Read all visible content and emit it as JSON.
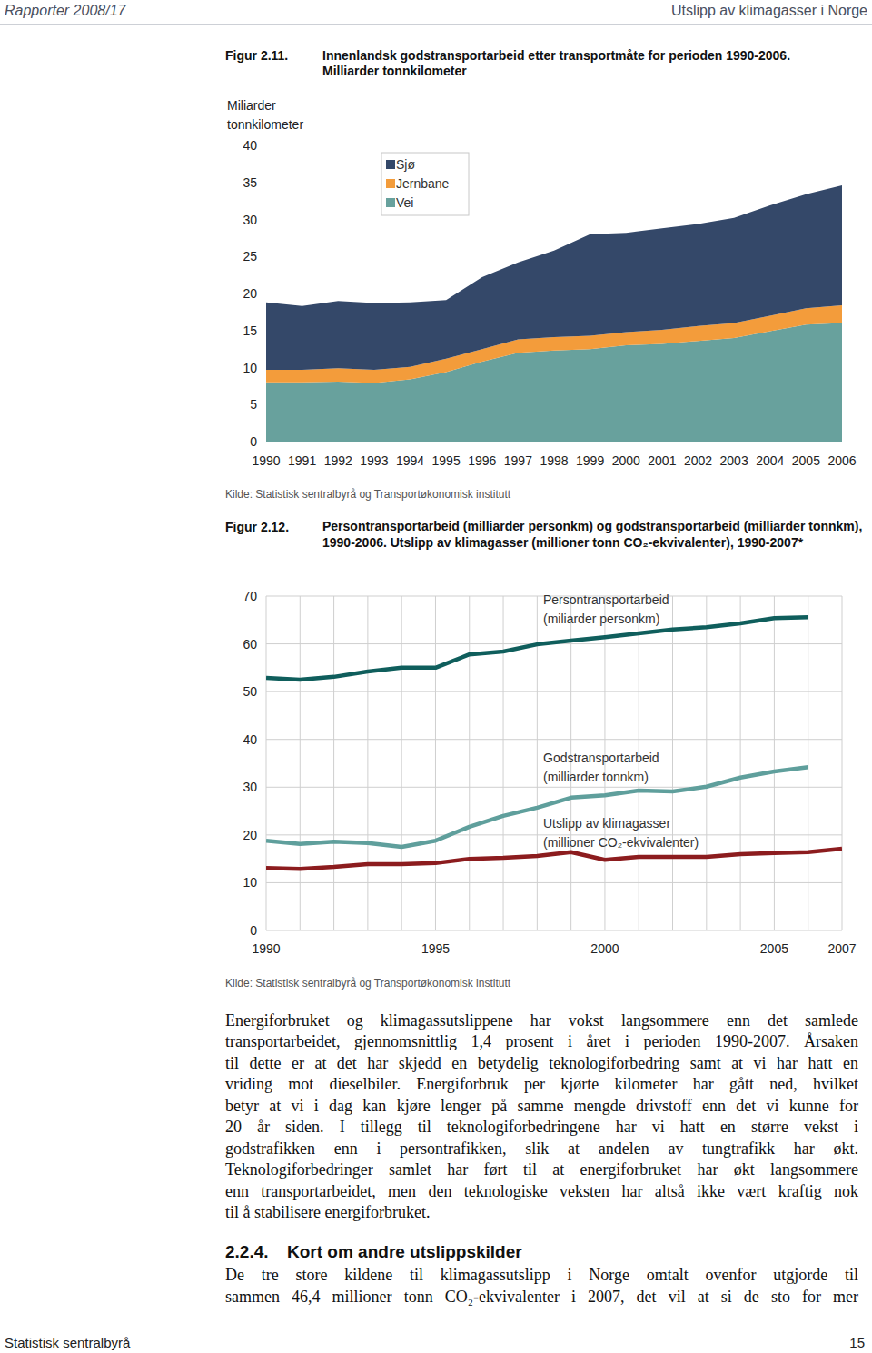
{
  "page": {
    "header_left": "Rapporter 2008/17",
    "header_right": "Utslipp av klimagasser i Norge",
    "footer_left": "Statistisk sentralbyrå",
    "footer_right": "15"
  },
  "chart_data": [
    {
      "type": "area",
      "stacked": true,
      "figure_label": "Figur 2.11.",
      "title": "Innenlandsk godstransportarbeid etter transportmåte for perioden 1990-2006.",
      "subtitle": "Milliarder tonnkilometer",
      "y_label": "Miliarder tonnkilometer",
      "source": "Kilde: Statistisk sentralbyrå og Transportøkonomisk institutt",
      "x": [
        1990,
        1991,
        1992,
        1993,
        1994,
        1995,
        1996,
        1997,
        1998,
        1999,
        2000,
        2001,
        2002,
        2003,
        2004,
        2005,
        2006
      ],
      "xlim": [
        1990,
        2006
      ],
      "xticks": [
        1990,
        1991,
        1992,
        1993,
        1994,
        1995,
        1996,
        1997,
        1998,
        1999,
        2000,
        2001,
        2002,
        2003,
        2004,
        2005,
        2006
      ],
      "ylim": [
        0,
        40
      ],
      "yticks": [
        0,
        5,
        10,
        15,
        20,
        25,
        30,
        35,
        40
      ],
      "grid": false,
      "legend": "top-left",
      "series": [
        {
          "name": "Sjø",
          "color": "#344869",
          "values": [
            9.1,
            8.6,
            9.1,
            9.0,
            8.7,
            7.9,
            9.7,
            10.4,
            11.7,
            13.7,
            13.4,
            13.7,
            13.8,
            14.2,
            14.9,
            15.4,
            16.2
          ]
        },
        {
          "name": "Jernbane",
          "color": "#f39c3b",
          "values": [
            1.7,
            1.7,
            1.8,
            1.8,
            1.7,
            1.8,
            1.7,
            1.8,
            1.8,
            1.8,
            1.8,
            1.9,
            2.0,
            2.0,
            2.1,
            2.2,
            2.4
          ]
        },
        {
          "name": "Vei",
          "color": "#68a19d",
          "values": [
            8.0,
            8.0,
            8.1,
            7.9,
            8.4,
            9.4,
            10.8,
            12.0,
            12.3,
            12.5,
            13.0,
            13.2,
            13.6,
            14.0,
            14.9,
            15.8,
            16.0
          ]
        }
      ]
    },
    {
      "type": "line",
      "figure_label": "Figur 2.12.",
      "title": "Persontransportarbeid (milliarder personkm) og godstransportarbeid (milliarder tonnkm), 1990-2006. Utslipp av klimagasser (millioner tonn CO₂-ekvivalenter), 1990-2007*",
      "source": "Kilde: Statistisk sentralbyrå og Transportøkonomisk institutt",
      "x": [
        1990,
        1991,
        1992,
        1993,
        1994,
        1995,
        1996,
        1997,
        1998,
        1999,
        2000,
        2001,
        2002,
        2003,
        2004,
        2005,
        2006,
        2007
      ],
      "xlim": [
        1990,
        2007
      ],
      "xticks": [
        1990,
        1995,
        2000,
        2005,
        2007
      ],
      "ylim": [
        0,
        70
      ],
      "yticks": [
        0,
        10,
        20,
        30,
        40,
        50,
        60,
        70
      ],
      "grid": true,
      "series": [
        {
          "name": "Persontransportarbeid (miliarder personkm)",
          "color": "#0f5e5c",
          "values": [
            52.9,
            52.5,
            53.1,
            54.2,
            55.0,
            55.0,
            57.8,
            58.4,
            59.9,
            60.7,
            61.4,
            62.2,
            63.0,
            63.5,
            64.3,
            65.4,
            65.6,
            null
          ]
        },
        {
          "name": "Godstransportarbeid (milliarder tonnkm)",
          "color": "#5f9f9c",
          "values": [
            18.8,
            18.1,
            18.6,
            18.3,
            17.5,
            18.8,
            21.7,
            24.0,
            25.7,
            27.8,
            28.3,
            29.3,
            29.1,
            30.1,
            32.0,
            33.3,
            34.2,
            null
          ]
        },
        {
          "name": "Utslipp av klimagasser (millioner CO₂-ekvivalenter)",
          "color": "#8c1c1e",
          "values": [
            13.1,
            12.9,
            13.3,
            13.9,
            13.9,
            14.1,
            15.0,
            15.2,
            15.6,
            16.4,
            14.8,
            15.4,
            15.4,
            15.4,
            16.0,
            16.2,
            16.4,
            17.1
          ]
        }
      ]
    }
  ],
  "body": {
    "paragraph_lines": [
      "Energiforbruket og klimagassutslippene har vokst langsommere enn det samlede",
      "transportarbeidet, gjennomsnittlig 1,4 prosent i året i perioden 1990-2007. Årsaken",
      "til dette er at det har skjedd en betydelig teknologiforbedring samt at vi har hatt en",
      "vriding mot dieselbiler. Energiforbruk per kjørte kilometer har gått ned, hvilket",
      "betyr at vi i dag kan kjøre lenger på samme mengde drivstoff enn det vi kunne for",
      "20 år siden. I tillegg til teknologiforbedringene har vi hatt en større vekst i",
      "godstrafikken enn i persontrafikken, slik at andelen av tungtrafikk har økt.",
      "Teknologiforbedringer samlet har ført til at energiforbruket har økt langsommere",
      "enn transportarbeidet, men den teknologiske veksten har altså ikke vært kraftig nok",
      "til å stabilisere energiforbruket."
    ],
    "section_number": "2.2.4.",
    "section_title": "Kort om andre utslippskilder",
    "section_lines": [
      "De tre store kildene til klimagassutslipp i Norge omtalt ovenfor utgjorde til",
      "sammen 46,4 millioner tonn CO₂-ekvivalenter i 2007, det vil at si de sto for mer"
    ]
  }
}
